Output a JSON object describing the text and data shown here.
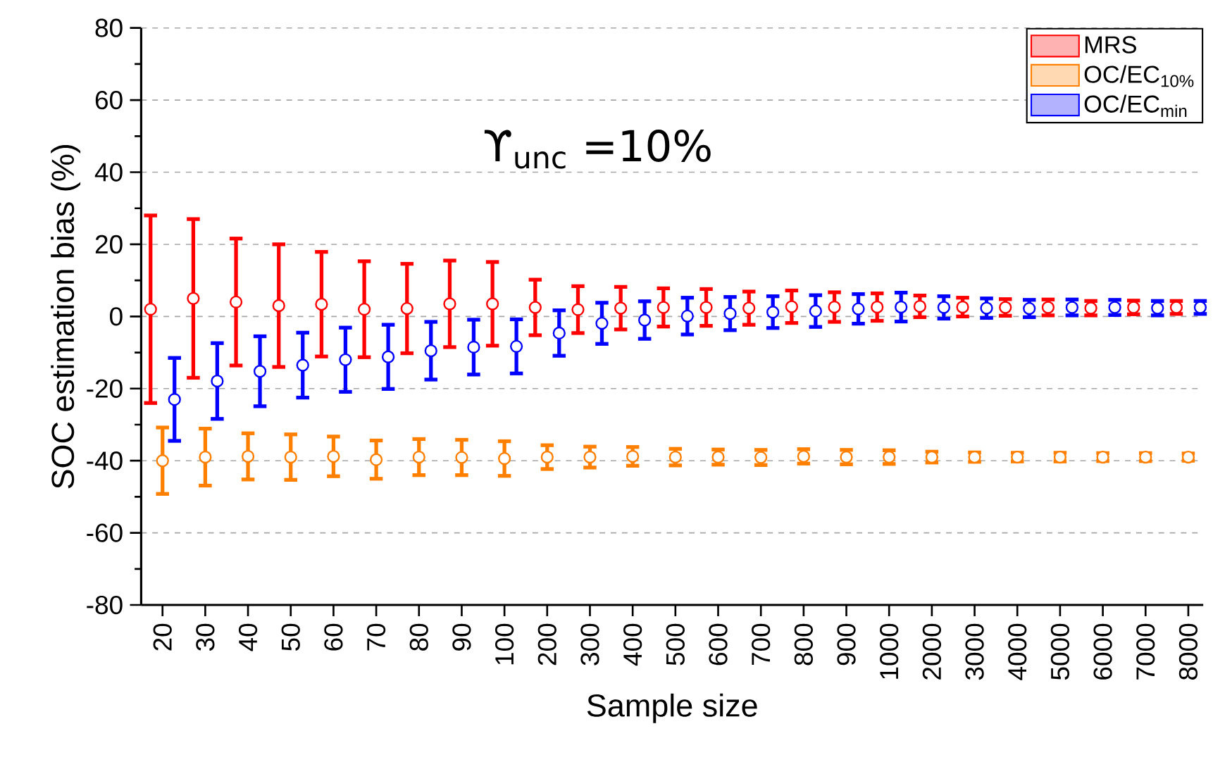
{
  "chart_data": {
    "type": "scatter",
    "xlabel": "Sample size",
    "ylabel": "SOC estimation bias (%)",
    "annotations": [
      "ϒ$_{unc}$ =10%"
    ],
    "categories": [
      "20",
      "30",
      "40",
      "50",
      "60",
      "70",
      "80",
      "90",
      "100",
      "200",
      "300",
      "400",
      "500",
      "600",
      "700",
      "800",
      "900",
      "1000",
      "2000",
      "3000",
      "4000",
      "5000",
      "6000",
      "7000",
      "8000"
    ],
    "series": [
      {
        "name": "MRS",
        "color": "#ff0000",
        "values": [
          2,
          5,
          4,
          3,
          3.4,
          2,
          2.2,
          3.5,
          3.5,
          2.5,
          1.9,
          2.3,
          2.5,
          2.5,
          2.3,
          2.7,
          2.6,
          2.6,
          2.8,
          2.6,
          2.5,
          2.5,
          2.3,
          2.5,
          2.5
        ],
        "errors": [
          26,
          22,
          17.6,
          17,
          14.5,
          13.3,
          12.4,
          12,
          11.6,
          7.7,
          6.5,
          5.9,
          5.3,
          5.1,
          4.6,
          4.5,
          4.1,
          3.8,
          3,
          2.6,
          2.3,
          2.2,
          2,
          1.9,
          1.8
        ]
      },
      {
        "name": "OC/EC$_{10%}$",
        "color": "#ff8000",
        "values": [
          -40,
          -39,
          -38.8,
          -39,
          -38.8,
          -39.7,
          -39,
          -39.1,
          -39.4,
          -39,
          -39,
          -38.8,
          -39,
          -39,
          -39.1,
          -38.8,
          -39,
          -39,
          -39,
          -39,
          -39,
          -39,
          -39,
          -39,
          -39
        ],
        "errors": [
          9.2,
          7.9,
          6.4,
          6.3,
          5.5,
          5.3,
          5,
          4.9,
          4.8,
          3.3,
          2.9,
          2.6,
          2.3,
          2.1,
          2.1,
          2,
          2,
          1.9,
          1.5,
          1.3,
          1.2,
          1.2,
          1.1,
          1.1,
          1
        ]
      },
      {
        "name": "OC/EC$_{min}$",
        "color": "#0000ff",
        "values": [
          -23,
          -17.9,
          -15.2,
          -13.5,
          -12,
          -11.2,
          -9.5,
          -8.5,
          -8.3,
          -4.6,
          -1.9,
          -1,
          0.1,
          0.8,
          1.2,
          1.5,
          2.1,
          2.6,
          2.5,
          2.3,
          2.2,
          2.5,
          2.5,
          2.3,
          2.5
        ],
        "errors": [
          11.5,
          10.5,
          9.7,
          9,
          8.9,
          8.9,
          8,
          7.6,
          7.5,
          6.3,
          5.7,
          5.2,
          5.1,
          4.6,
          4.4,
          4.4,
          4.1,
          4,
          3.1,
          2.7,
          2.4,
          2.2,
          2.1,
          2,
          1.8
        ]
      }
    ],
    "ylim": [
      -80,
      80
    ],
    "yticks": [
      -80,
      -60,
      -40,
      -20,
      0,
      20,
      40,
      60,
      80
    ],
    "grid": "y",
    "legend": "top right",
    "marker": "circle"
  }
}
